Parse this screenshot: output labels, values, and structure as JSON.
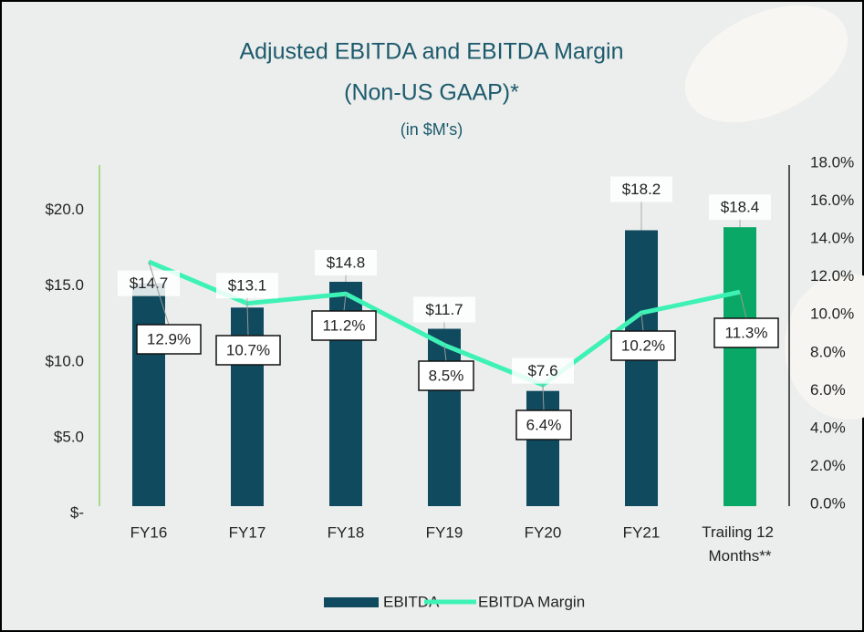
{
  "chart_data": {
    "type": "bar",
    "title": "Adjusted EBITDA and EBITDA Margin",
    "title_line2": "(Non-US GAAP)*",
    "subtitle": "(in $M's)",
    "categories": [
      "FY16",
      "FY17",
      "FY18",
      "FY19",
      "FY20",
      "FY21",
      "Trailing 12 Months**"
    ],
    "series": [
      {
        "name": "EBITDA",
        "type": "bar",
        "color": "#0f4a5e",
        "colors": [
          "#0f4a5e",
          "#0f4a5e",
          "#0f4a5e",
          "#0f4a5e",
          "#0f4a5e",
          "#0f4a5e",
          "#0aa866"
        ],
        "values": [
          14.7,
          13.1,
          14.8,
          11.7,
          7.6,
          18.2,
          18.4
        ],
        "value_labels": [
          "$14.7",
          "$13.1",
          "$14.8",
          "$11.7",
          "$7.6",
          "$18.2",
          "$18.4"
        ]
      },
      {
        "name": "EBITDA Margin",
        "type": "line",
        "axis": "y2",
        "color": "#3ef2b6",
        "values": [
          12.9,
          10.7,
          11.2,
          8.5,
          6.4,
          10.2,
          11.3
        ],
        "value_labels": [
          "12.9%",
          "10.7%",
          "11.2%",
          "8.5%",
          "6.4%",
          "10.2%",
          "11.3%"
        ]
      }
    ],
    "ylim": [
      0,
      22.5
    ],
    "yticks": [
      {
        "value": 0,
        "label": "$-"
      },
      {
        "value": 5,
        "label": "$5.0"
      },
      {
        "value": 10,
        "label": "$10.0"
      },
      {
        "value": 15,
        "label": "$15.0"
      },
      {
        "value": 20,
        "label": "$20.0"
      }
    ],
    "y2lim": [
      0,
      18
    ],
    "y2ticks": [
      {
        "value": 0,
        "label": "0.0%"
      },
      {
        "value": 2,
        "label": "2.0%"
      },
      {
        "value": 4,
        "label": "4.0%"
      },
      {
        "value": 6,
        "label": "6.0%"
      },
      {
        "value": 8,
        "label": "8.0%"
      },
      {
        "value": 10,
        "label": "10.0%"
      },
      {
        "value": 12,
        "label": "12.0%"
      },
      {
        "value": 14,
        "label": "14.0%"
      },
      {
        "value": 16,
        "label": "16.0%"
      },
      {
        "value": 18,
        "label": "18.0%"
      }
    ],
    "legend": "bottom"
  }
}
